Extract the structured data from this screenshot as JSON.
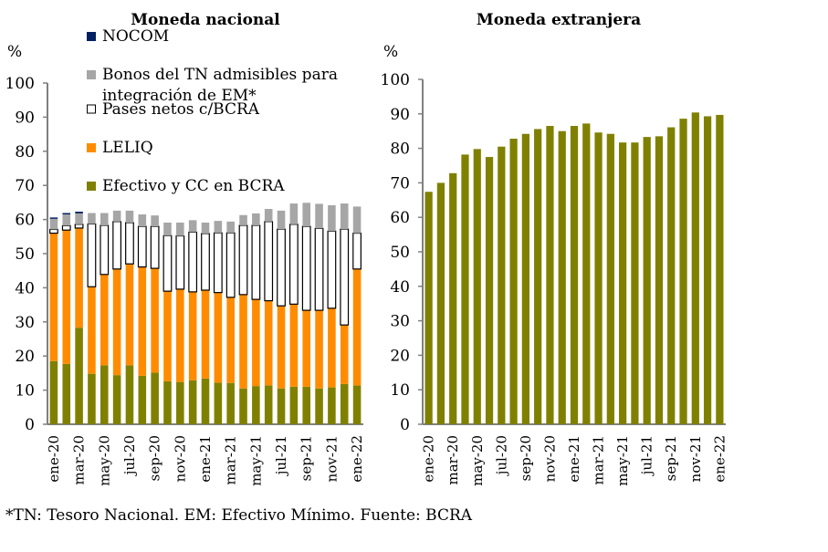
{
  "chart_data": [
    {
      "type": "bar",
      "stacked": true,
      "title": "Moneda nacional",
      "ylabel": "%",
      "xlabel": "",
      "ylim": [
        0,
        100
      ],
      "yticks": [
        0,
        10,
        20,
        30,
        40,
        50,
        60,
        70,
        80,
        90,
        100
      ],
      "grid": false,
      "legend_position": "top-left (inside)",
      "categories": [
        "ene-20",
        "feb-20",
        "mar-20",
        "abr-20",
        "may-20",
        "jun-20",
        "jul-20",
        "ago-20",
        "sep-20",
        "oct-20",
        "nov-20",
        "dic-20",
        "ene-21",
        "feb-21",
        "mar-21",
        "abr-21",
        "may-21",
        "jun-21",
        "jul-21",
        "ago-21",
        "sep-21",
        "oct-21",
        "nov-21",
        "dic-21",
        "ene-22"
      ],
      "xtick_labels": [
        "ene-20",
        "mar-20",
        "may-20",
        "jul-20",
        "sep-20",
        "nov-20",
        "ene-21",
        "mar-21",
        "may-21",
        "jul-21",
        "sep-21",
        "nov-21",
        "ene-22"
      ],
      "series": [
        {
          "name": "Efectivo y CC en BCRA",
          "color": "#808000",
          "values": [
            18.5,
            17.7,
            28.3,
            14.8,
            17.3,
            14.4,
            17.3,
            14.2,
            15.1,
            12.6,
            12.4,
            12.9,
            13.4,
            12.2,
            12.1,
            10.5,
            11.2,
            11.4,
            10.5,
            11.0,
            11.0,
            10.5,
            10.8,
            11.8,
            11.4
          ]
        },
        {
          "name": "LELIQ",
          "color": "#FF8C00",
          "values": [
            37.5,
            39.2,
            29.2,
            25.5,
            26.6,
            31.1,
            29.7,
            31.9,
            30.6,
            26.4,
            27.2,
            25.9,
            25.9,
            26.4,
            25.1,
            27.5,
            25.4,
            24.8,
            24.2,
            24.2,
            22.4,
            22.9,
            23.2,
            17.3,
            34.1
          ]
        },
        {
          "name": "Pases netos c/BCRA",
          "color": "#FFFFFF",
          "values": [
            1.1,
            1.3,
            1.1,
            18.4,
            14.4,
            13.9,
            12.1,
            11.9,
            12.3,
            16.3,
            15.6,
            17.5,
            16.6,
            17.5,
            18.9,
            20.3,
            21.7,
            23.2,
            22.5,
            23.4,
            24.6,
            24.0,
            22.6,
            28.1,
            10.5
          ]
        },
        {
          "name": "Bonos del TN admisibles para integración de EM*",
          "color": "#A6A6A6",
          "values": [
            3.1,
            3.3,
            3.2,
            3.2,
            3.6,
            3.2,
            3.5,
            3.5,
            3.2,
            3.8,
            3.9,
            3.5,
            3.2,
            3.5,
            3.3,
            3.0,
            3.5,
            3.7,
            5.4,
            6.1,
            6.9,
            7.2,
            7.6,
            7.5,
            7.8
          ]
        },
        {
          "name": "NOCOM",
          "color": "#002060",
          "values": [
            0.4,
            0.4,
            0.5,
            0,
            0,
            0,
            0,
            0,
            0,
            0,
            0,
            0,
            0,
            0,
            0,
            0,
            0,
            0,
            0,
            0,
            0,
            0,
            0,
            0,
            0
          ]
        }
      ]
    },
    {
      "type": "bar",
      "stacked": false,
      "title": "Moneda extranjera",
      "ylabel": "%",
      "xlabel": "",
      "ylim": [
        0,
        100
      ],
      "yticks": [
        0,
        10,
        20,
        30,
        40,
        50,
        60,
        70,
        80,
        90,
        100
      ],
      "grid": false,
      "categories": [
        "ene-20",
        "feb-20",
        "mar-20",
        "abr-20",
        "may-20",
        "jun-20",
        "jul-20",
        "ago-20",
        "sep-20",
        "oct-20",
        "nov-20",
        "dic-20",
        "ene-21",
        "feb-21",
        "mar-21",
        "abr-21",
        "may-21",
        "jun-21",
        "jul-21",
        "ago-21",
        "sep-21",
        "oct-21",
        "nov-21",
        "dic-21",
        "ene-22"
      ],
      "xtick_labels": [
        "ene-20",
        "mar-20",
        "may-20",
        "jul-20",
        "sep-20",
        "nov-20",
        "ene-21",
        "mar-21",
        "may-21",
        "jul-21",
        "sep-21",
        "nov-21",
        "ene-22"
      ],
      "series": [
        {
          "name": "Efectivo y CC en BCRA",
          "color": "#808000",
          "values": [
            67.4,
            70.0,
            72.8,
            78.2,
            79.8,
            77.5,
            80.5,
            82.8,
            84.2,
            85.6,
            86.5,
            85.0,
            86.5,
            87.2,
            84.6,
            84.2,
            81.7,
            81.7,
            83.3,
            83.5,
            86.1,
            88.6,
            90.4,
            89.3,
            89.7
          ]
        }
      ]
    }
  ],
  "footnote": "*TN: Tesoro Nacional. EM: Efectivo Mínimo. Fuente: BCRA",
  "legend": [
    {
      "label_lines": [
        "NOCOM"
      ],
      "color": "#002060",
      "outlined": false
    },
    {
      "label_lines": [
        "Bonos del TN admisibles para",
        "integración de EM*"
      ],
      "color": "#A6A6A6",
      "outlined": false
    },
    {
      "label_lines": [
        "Pases netos c/BCRA"
      ],
      "color": "#FFFFFF",
      "outlined": true
    },
    {
      "label_lines": [
        "LELIQ"
      ],
      "color": "#FF8C00",
      "outlined": false
    },
    {
      "label_lines": [
        "Efectivo y CC en BCRA"
      ],
      "color": "#808000",
      "outlined": false
    }
  ]
}
